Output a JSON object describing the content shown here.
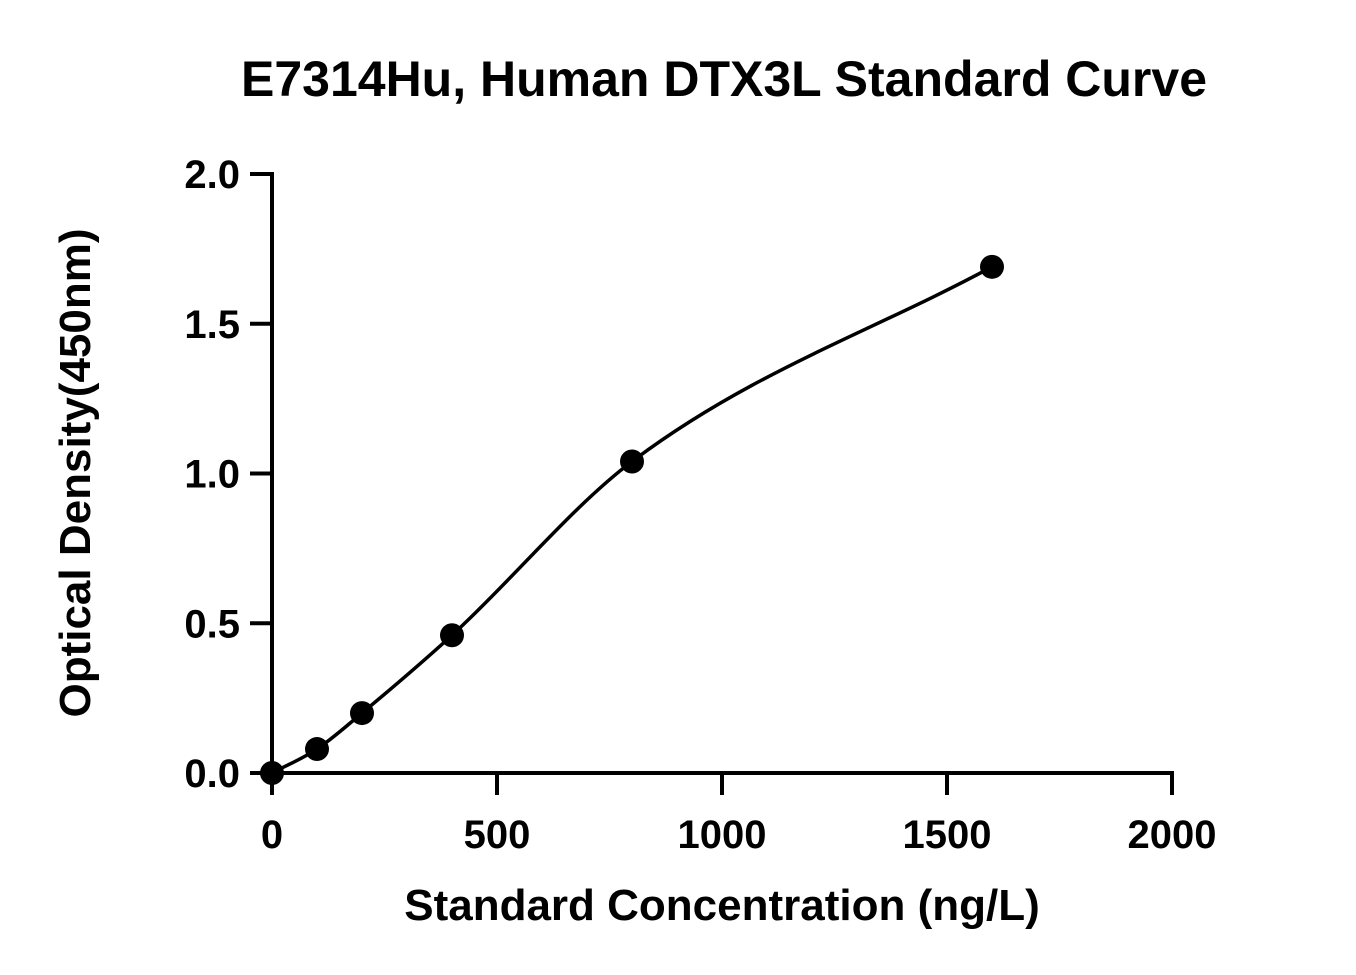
{
  "chart_data": {
    "type": "scatter",
    "title": "E7314Hu, Human DTX3L Standard Curve",
    "xlabel": "Standard Concentration (ng/L)",
    "ylabel": "Optical Density(450nm)",
    "xlim": [
      0,
      2000
    ],
    "ylim": [
      0,
      2.0
    ],
    "x_ticks": [
      "0",
      "500",
      "1000",
      "1500",
      "2000"
    ],
    "y_ticks": [
      "0.0",
      "0.5",
      "1.0",
      "1.5",
      "2.0"
    ],
    "grid": false,
    "legend": "none",
    "series": [
      {
        "points": [
          {
            "x": 0,
            "y": 0.0
          },
          {
            "x": 100,
            "y": 0.08
          },
          {
            "x": 200,
            "y": 0.2
          },
          {
            "x": 400,
            "y": 0.46
          },
          {
            "x": 800,
            "y": 1.04
          },
          {
            "x": 1600,
            "y": 1.69
          }
        ],
        "fit": "four-parameter logistic curve",
        "color": "#000000"
      }
    ]
  }
}
